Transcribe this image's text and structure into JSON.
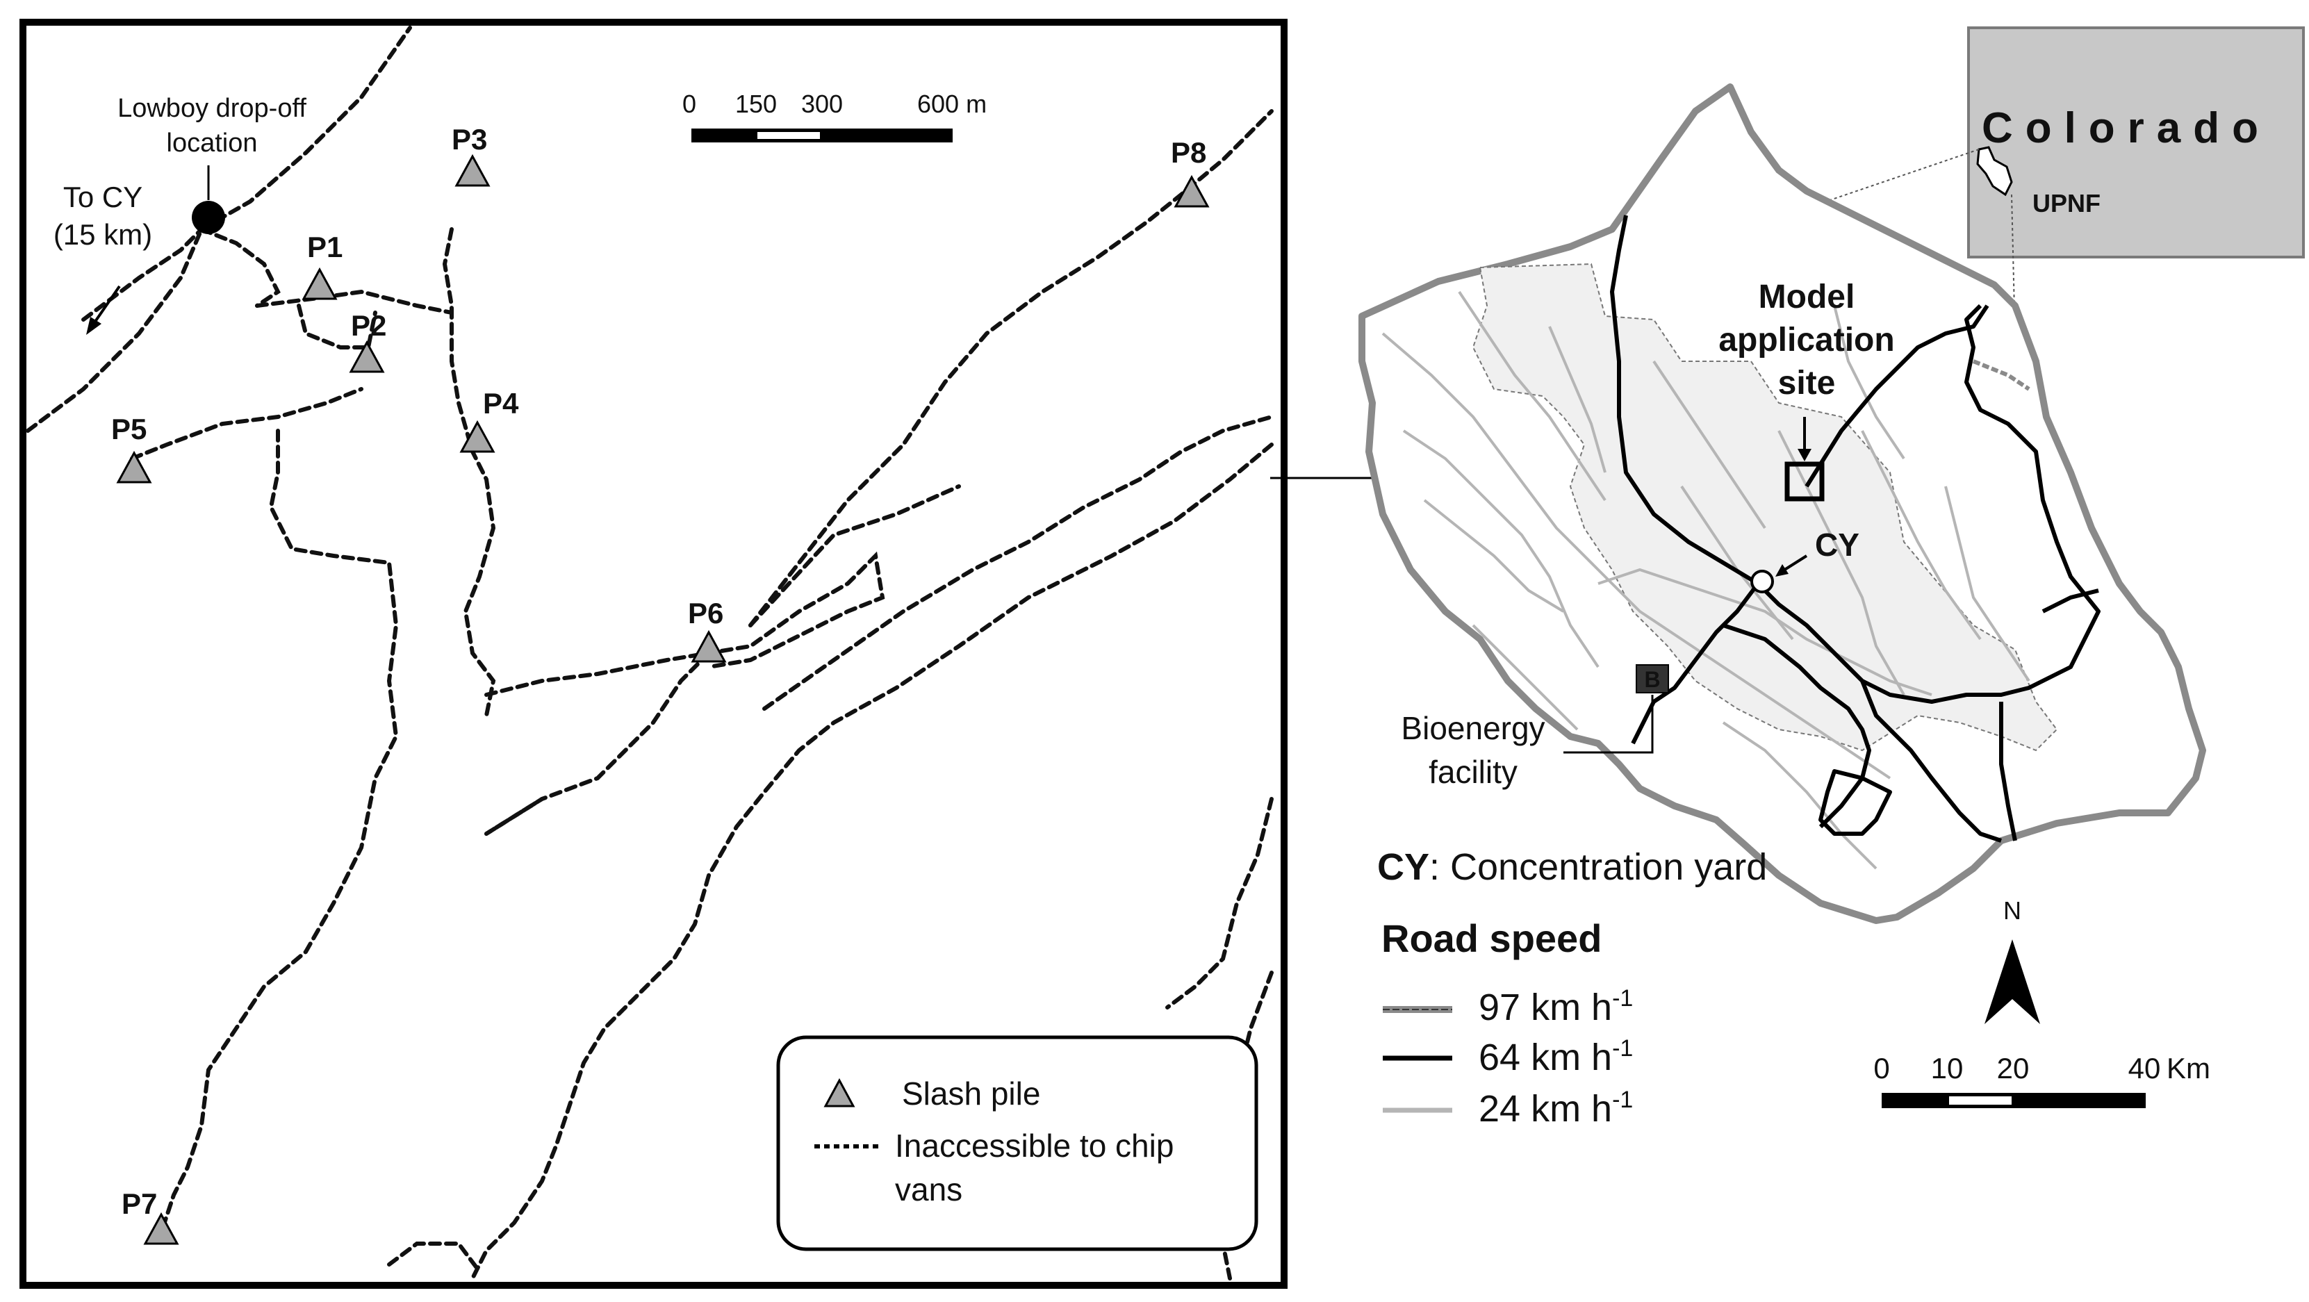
{
  "detail_map": {
    "lowboy_label_line1": "Lowboy drop-off",
    "lowboy_label_line2": "location",
    "to_cy_line1": "To CY",
    "to_cy_line2": "(15 km)",
    "piles": [
      {
        "label": "P1"
      },
      {
        "label": "P2"
      },
      {
        "label": "P3"
      },
      {
        "label": "P4"
      },
      {
        "label": "P5"
      },
      {
        "label": "P6"
      },
      {
        "label": "P7"
      },
      {
        "label": "P8"
      }
    ],
    "scale_labels": [
      "0",
      "150",
      "300",
      "600 m"
    ],
    "legend": {
      "slash_pile": "Slash pile",
      "inaccessible_line1": "Inaccessible to chip",
      "inaccessible_line2": "vans"
    }
  },
  "overview_map": {
    "state_label": "Colorado",
    "forest_label": "UPNF",
    "model_site_line1": "Model",
    "model_site_line2": "application",
    "model_site_line3": "site",
    "cy_label": "CY",
    "facility_marker": "B",
    "facility_line1": "Bioenergy",
    "facility_line2": "facility",
    "cy_definition_abbr": "CY",
    "cy_definition_text": ": Concentration yard",
    "road_speed_title": "Road speed",
    "road_speeds": [
      {
        "value": "97 km h",
        "exp": "-1",
        "color": "#8a8a8a"
      },
      {
        "value": "64 km h",
        "exp": "-1",
        "color": "#000000"
      },
      {
        "value": "24 km h",
        "exp": "-1",
        "color": "#b5b5b5"
      }
    ],
    "north_label": "N",
    "scale_labels": [
      "0",
      "10",
      "20",
      "40",
      "Km"
    ]
  }
}
